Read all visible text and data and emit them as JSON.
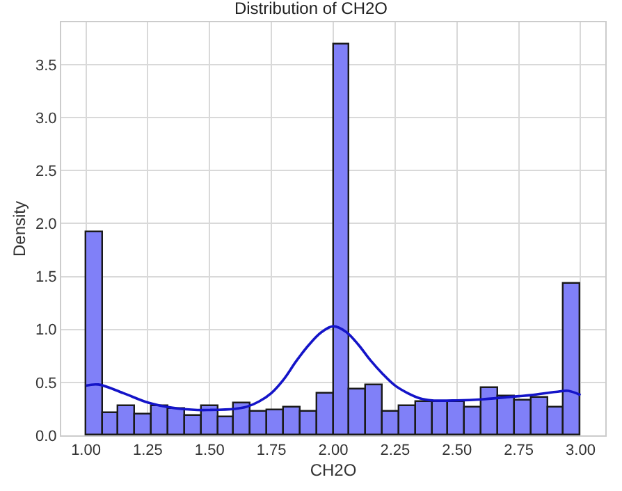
{
  "chart_data": {
    "type": "histogram",
    "title": "Distribution of CH2O",
    "xlabel": "CH2O",
    "ylabel": "Density",
    "bins": [
      1,
      1.0667,
      1.1333,
      1.2,
      1.2667,
      1.3333,
      1.4,
      1.4667,
      1.5333,
      1.6,
      1.6667,
      1.7333,
      1.8,
      1.8667,
      1.9333,
      2,
      2.0667,
      2.1333,
      2.2,
      2.2667,
      2.3333,
      2.4,
      2.4667,
      2.5333,
      2.6,
      2.6667,
      2.7333,
      2.8,
      2.8667,
      2.9333,
      3
    ],
    "values": [
      1.92,
      0.21,
      0.28,
      0.2,
      0.28,
      0.25,
      0.19,
      0.27,
      0.17,
      0.3,
      0.22,
      0.24,
      0.26,
      0.22,
      0.4,
      3.69,
      0.43,
      0.47,
      0.22,
      0.28,
      0.31,
      0.31,
      0.32,
      0.26,
      0.45,
      0.37,
      0.33,
      0.36,
      0.26,
      1.43
    ],
    "color": "#8080f8",
    "series": [
      {
        "type": "line",
        "color": "#1414c8",
        "x": [
          1,
          1.05,
          1.15,
          1.25,
          1.35,
          1.45,
          1.5,
          1.6,
          1.65,
          1.7,
          1.75,
          1.8,
          1.85,
          1.9,
          1.95,
          2,
          2.05,
          2.1,
          2.15,
          2.2,
          2.25,
          2.3,
          2.35,
          2.4,
          2.5,
          2.6,
          2.7,
          2.75,
          2.8,
          2.9,
          2.95,
          3
        ],
        "values": [
          0.47,
          0.48,
          0.4,
          0.31,
          0.26,
          0.24,
          0.24,
          0.25,
          0.27,
          0.32,
          0.4,
          0.53,
          0.7,
          0.85,
          0.97,
          1.03,
          0.98,
          0.86,
          0.71,
          0.58,
          0.47,
          0.4,
          0.35,
          0.33,
          0.33,
          0.34,
          0.36,
          0.37,
          0.38,
          0.41,
          0.42,
          0.38
        ]
      }
    ],
    "xlim": [
      0.9,
      3.1
    ],
    "xticks": [
      {
        "value": 1,
        "label": "1.00"
      },
      {
        "value": 1.25,
        "label": "1.25"
      },
      {
        "value": 1.5,
        "label": "1.50"
      },
      {
        "value": 1.75,
        "label": "1.75"
      },
      {
        "value": 2,
        "label": "2.00"
      },
      {
        "value": 2.25,
        "label": "2.25"
      },
      {
        "value": 2.5,
        "label": "2.50"
      },
      {
        "value": 2.75,
        "label": "2.75"
      },
      {
        "value": 3,
        "label": "3.00"
      }
    ],
    "ylim": [
      0,
      3.9
    ],
    "yticks": [
      {
        "value": 0,
        "label": "0.0"
      },
      0.5,
      {
        "value": 1,
        "label": "1.0"
      },
      1.5,
      {
        "value": 2,
        "label": "2.0"
      },
      2.5,
      {
        "value": 3,
        "label": "3.0"
      },
      3.5
    ],
    "grid": true
  }
}
